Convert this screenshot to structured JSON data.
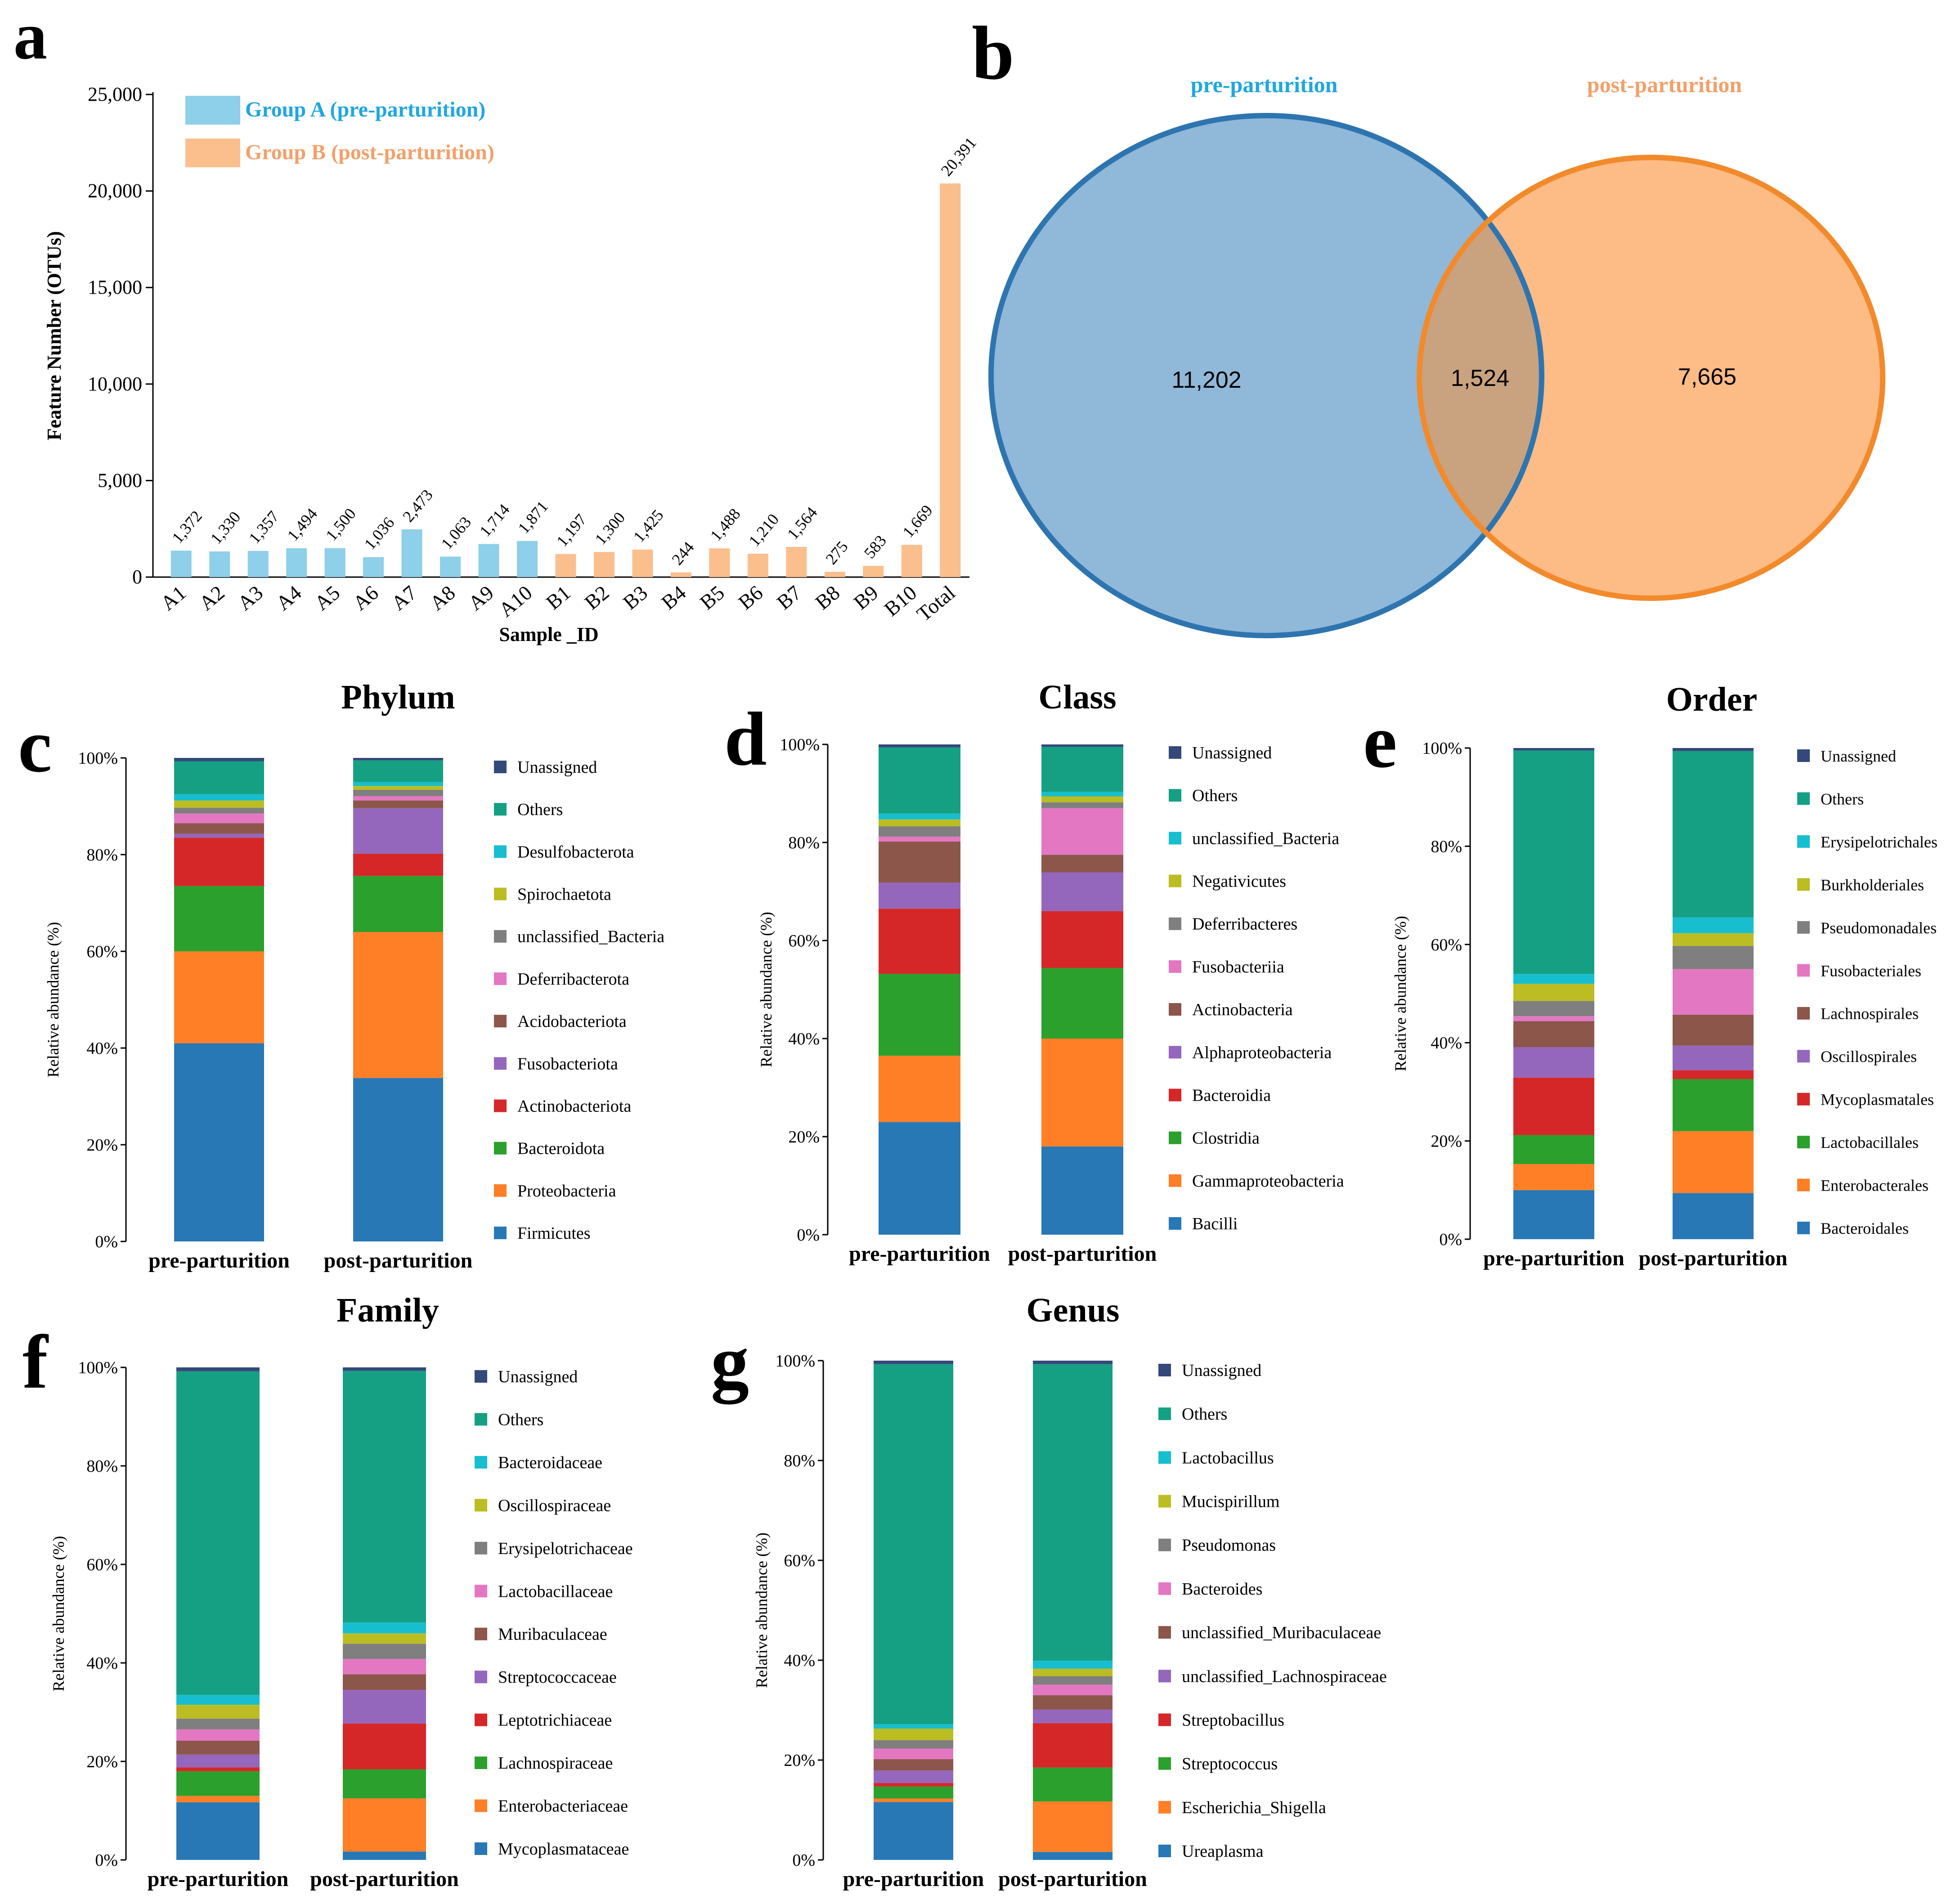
{
  "colors": {
    "group_a": "#8ecfea",
    "group_b": "#fbbf8e",
    "group_a_text": "#1fa7de",
    "group_b_text": "#f3a06a",
    "venn_left_fill": "#8fb8d9",
    "venn_left_stroke": "#2e75b0",
    "venn_right_fill": "#fdbb85",
    "venn_right_stroke": "#f28a2b",
    "venn_overlap_fill": "#c9a27f",
    "palette": [
      "#2878b5",
      "#ff7f27",
      "#2ca02c",
      "#d62728",
      "#9467bd",
      "#8c564b",
      "#e377c2",
      "#7f7f7f",
      "#bcbd22",
      "#17becf",
      "#15a083",
      "#34497a"
    ]
  },
  "chart_data": [
    {
      "panel": "a",
      "type": "bar",
      "ylabel": "Feature Number (OTUs)",
      "xlabel": "Sample _ID",
      "ylim": [
        0,
        25000
      ],
      "yticks": [
        "0",
        "5,000",
        "10,000",
        "15,000",
        "20,000",
        "25,000"
      ],
      "legend": [
        "Group A (pre-parturition)",
        "Group B (post-parturition)"
      ],
      "legend_position": "top-left",
      "categories": [
        "A1",
        "A2",
        "A3",
        "A4",
        "A5",
        "A6",
        "A7",
        "A8",
        "A9",
        "A10",
        "B1",
        "B2",
        "B3",
        "B4",
        "B5",
        "B6",
        "B7",
        "B8",
        "B9",
        "B10",
        "Total"
      ],
      "values": [
        1372,
        1330,
        1357,
        1494,
        1500,
        1036,
        2473,
        1063,
        1714,
        1871,
        1197,
        1300,
        1425,
        244,
        1488,
        1210,
        1564,
        275,
        583,
        1669,
        20391
      ],
      "value_labels": [
        "1,372",
        "1,330",
        "1,357",
        "1,494",
        "1,500",
        "1,036",
        "2,473",
        "1,063",
        "1,714",
        "1,871",
        "1,197",
        "1,300",
        "1,425",
        "244",
        "1,488",
        "1,210",
        "1,564",
        "275",
        "583",
        "1,669",
        "20,391"
      ],
      "groups": [
        "A",
        "A",
        "A",
        "A",
        "A",
        "A",
        "A",
        "A",
        "A",
        "A",
        "B",
        "B",
        "B",
        "B",
        "B",
        "B",
        "B",
        "B",
        "B",
        "B",
        "B"
      ]
    },
    {
      "panel": "b",
      "type": "venn",
      "sets": [
        "pre-parturition",
        "post-parturition"
      ],
      "left_only": "11,202",
      "overlap": "1,524",
      "right_only": "7,665"
    },
    {
      "panel": "c",
      "type": "bar",
      "stacked": true,
      "title": "Phylum",
      "ylabel": "Relative abundance (%)",
      "yticks": [
        "0%",
        "20%",
        "40%",
        "60%",
        "80%",
        "100%"
      ],
      "categories": [
        "pre-parturition",
        "post-parturition"
      ],
      "legend": [
        "Unassigned",
        "Others",
        "Desulfobacterota",
        "Spirochaetota",
        "unclassified_Bacteria",
        "Deferribacterota",
        "Acidobacteriota",
        "Fusobacteriota",
        "Actinobacteriota",
        "Bacteroidota",
        "Proteobacteria",
        "Firmicutes"
      ],
      "series": [
        {
          "name": "Firmicutes",
          "values": [
            41.0,
            33.8
          ]
        },
        {
          "name": "Proteobacteria",
          "values": [
            19.0,
            30.2
          ]
        },
        {
          "name": "Bacteroidota",
          "values": [
            13.5,
            11.6
          ]
        },
        {
          "name": "Actinobacteriota",
          "values": [
            10.0,
            4.6
          ]
        },
        {
          "name": "Fusobacteriota",
          "values": [
            0.8,
            9.4
          ]
        },
        {
          "name": "Acidobacteriota",
          "values": [
            2.2,
            1.6
          ]
        },
        {
          "name": "Deferribacterota",
          "values": [
            2.0,
            0.9
          ]
        },
        {
          "name": "unclassified_Bacteria",
          "values": [
            1.2,
            1.3
          ]
        },
        {
          "name": "Spirochaetota",
          "values": [
            1.5,
            0.8
          ]
        },
        {
          "name": "Desulfobacterota",
          "values": [
            1.3,
            0.8
          ]
        },
        {
          "name": "Others",
          "values": [
            6.8,
            4.5
          ]
        },
        {
          "name": "Unassigned",
          "values": [
            0.7,
            0.5
          ]
        }
      ]
    },
    {
      "panel": "d",
      "type": "bar",
      "stacked": true,
      "title": "Class",
      "ylabel": "Relative abundance (%)",
      "yticks": [
        "0%",
        "20%",
        "40%",
        "60%",
        "80%",
        "100%"
      ],
      "categories": [
        "pre-parturition",
        "post-parturition"
      ],
      "legend": [
        "Unassigned",
        "Others",
        "unclassified_Bacteria",
        "Negativicutes",
        "Deferribacteres",
        "Fusobacteriia",
        "Actinobacteria",
        "Alphaproteobacteria",
        "Bacteroidia",
        "Clostridia",
        "Gammaproteobacteria",
        "Bacilli"
      ],
      "series": [
        {
          "name": "Bacilli",
          "values": [
            23.0,
            18.0
          ]
        },
        {
          "name": "Gammaproteobacteria",
          "values": [
            13.5,
            22.0
          ]
        },
        {
          "name": "Clostridia",
          "values": [
            16.7,
            14.4
          ]
        },
        {
          "name": "Bacteroidia",
          "values": [
            13.3,
            11.6
          ]
        },
        {
          "name": "Alphaproteobacteria",
          "values": [
            5.3,
            7.9
          ]
        },
        {
          "name": "Actinobacteria",
          "values": [
            8.4,
            3.6
          ]
        },
        {
          "name": "Fusobacteriia",
          "values": [
            1.0,
            9.5
          ]
        },
        {
          "name": "Deferribacteres",
          "values": [
            2.1,
            1.2
          ]
        },
        {
          "name": "Negativicutes",
          "values": [
            1.4,
            1.2
          ]
        },
        {
          "name": "unclassified_Bacteria",
          "values": [
            1.2,
            0.9
          ]
        },
        {
          "name": "Others",
          "values": [
            13.5,
            9.2
          ]
        },
        {
          "name": "Unassigned",
          "values": [
            0.6,
            0.5
          ]
        }
      ]
    },
    {
      "panel": "e",
      "type": "bar",
      "stacked": true,
      "title": "Order",
      "ylabel": "Relative abundance (%)",
      "yticks": [
        "0%",
        "20%",
        "40%",
        "60%",
        "80%",
        "100%"
      ],
      "categories": [
        "pre-parturition",
        "post-parturition"
      ],
      "legend": [
        "Unassigned",
        "Others",
        "Erysipelotrichales",
        "Burkholderiales",
        "Pseudomonadales",
        "Fusobacteriales",
        "Lachnospirales",
        "Oscillospirales",
        "Mycoplasmatales",
        "Lactobacillales",
        "Enterobacterales",
        "Bacteroidales"
      ],
      "series": [
        {
          "name": "Bacteroidales",
          "values": [
            10.0,
            9.4
          ]
        },
        {
          "name": "Enterobacterales",
          "values": [
            5.3,
            12.6
          ]
        },
        {
          "name": "Lactobacillales",
          "values": [
            5.9,
            10.6
          ]
        },
        {
          "name": "Mycoplasmatales",
          "values": [
            11.7,
            1.8
          ]
        },
        {
          "name": "Oscillospirales",
          "values": [
            6.2,
            5.0
          ]
        },
        {
          "name": "Lachnospirales",
          "values": [
            5.3,
            6.3
          ]
        },
        {
          "name": "Fusobacteriales",
          "values": [
            1.0,
            9.3
          ]
        },
        {
          "name": "Pseudomonadales",
          "values": [
            3.1,
            4.7
          ]
        },
        {
          "name": "Burkholderiales",
          "values": [
            3.5,
            2.6
          ]
        },
        {
          "name": "Erysipelotrichales",
          "values": [
            2.0,
            3.2
          ]
        },
        {
          "name": "Others",
          "values": [
            45.5,
            33.9
          ]
        },
        {
          "name": "Unassigned",
          "values": [
            0.5,
            0.6
          ]
        }
      ]
    },
    {
      "panel": "f",
      "type": "bar",
      "stacked": true,
      "title": "Family",
      "ylabel": "Relative abundance (%)",
      "yticks": [
        "0%",
        "20%",
        "40%",
        "60%",
        "80%",
        "100%"
      ],
      "categories": [
        "pre-parturition",
        "post-parturition"
      ],
      "legend": [
        "Unassigned",
        "Others",
        "Bacteroidaceae",
        "Oscillospiraceae",
        "Erysipelotrichaceae",
        "Lactobacillaceae",
        "Muribaculaceae",
        "Streptococcaceae",
        "Leptotrichiaceae",
        "Lachnospiraceae",
        "Enterobacteriaceae",
        "Mycoplasmataceae"
      ],
      "series": [
        {
          "name": "Mycoplasmataceae",
          "values": [
            11.7,
            1.7
          ]
        },
        {
          "name": "Enterobacteriaceae",
          "values": [
            1.3,
            10.8
          ]
        },
        {
          "name": "Lachnospiraceae",
          "values": [
            5.0,
            5.9
          ]
        },
        {
          "name": "Leptotrichiaceae",
          "values": [
            0.8,
            9.3
          ]
        },
        {
          "name": "Streptococcaceae",
          "values": [
            2.6,
            6.8
          ]
        },
        {
          "name": "Muribaculaceae",
          "values": [
            2.8,
            3.2
          ]
        },
        {
          "name": "Lactobacillaceae",
          "values": [
            2.3,
            3.1
          ]
        },
        {
          "name": "Erysipelotrichaceae",
          "values": [
            2.2,
            3.1
          ]
        },
        {
          "name": "Oscillospiraceae",
          "values": [
            2.8,
            2.1
          ]
        },
        {
          "name": "Bacteroidaceae",
          "values": [
            2.0,
            2.2
          ]
        },
        {
          "name": "Others",
          "values": [
            65.7,
            51.1
          ]
        },
        {
          "name": "Unassigned",
          "values": [
            0.8,
            0.7
          ]
        }
      ]
    },
    {
      "panel": "g",
      "type": "bar",
      "stacked": true,
      "title": "Genus",
      "ylabel": "Relative abundance (%)",
      "yticks": [
        "0%",
        "20%",
        "40%",
        "60%",
        "80%",
        "100%"
      ],
      "categories": [
        "pre-parturition",
        "post-parturition"
      ],
      "legend": [
        "Unassigned",
        "Others",
        "Lactobacillus",
        "Mucispirillum",
        "Pseudomonas",
        "Bacteroides",
        "unclassified_Muribaculaceae",
        "unclassified_Lachnospiraceae",
        "Streptobacillus",
        "Streptococcus",
        "Escherichia_Shigella",
        "Ureaplasma"
      ],
      "series": [
        {
          "name": "Ureaplasma",
          "values": [
            11.6,
            1.6
          ]
        },
        {
          "name": "Escherichia_Shigella",
          "values": [
            0.7,
            10.1
          ]
        },
        {
          "name": "Streptococcus",
          "values": [
            2.4,
            6.8
          ]
        },
        {
          "name": "Streptobacillus",
          "values": [
            0.7,
            8.9
          ]
        },
        {
          "name": "unclassified_Lachnospiraceae",
          "values": [
            2.5,
            2.7
          ]
        },
        {
          "name": "unclassified_Muribaculaceae",
          "values": [
            2.3,
            2.9
          ]
        },
        {
          "name": "Bacteroides",
          "values": [
            2.1,
            2.1
          ]
        },
        {
          "name": "Pseudomonas",
          "values": [
            1.7,
            1.7
          ]
        },
        {
          "name": "Mucispirillum",
          "values": [
            2.3,
            1.5
          ]
        },
        {
          "name": "Lactobacillus",
          "values": [
            0.9,
            1.6
          ]
        },
        {
          "name": "Others",
          "values": [
            72.1,
            59.4
          ]
        },
        {
          "name": "Unassigned",
          "values": [
            0.7,
            0.7
          ]
        }
      ]
    }
  ]
}
